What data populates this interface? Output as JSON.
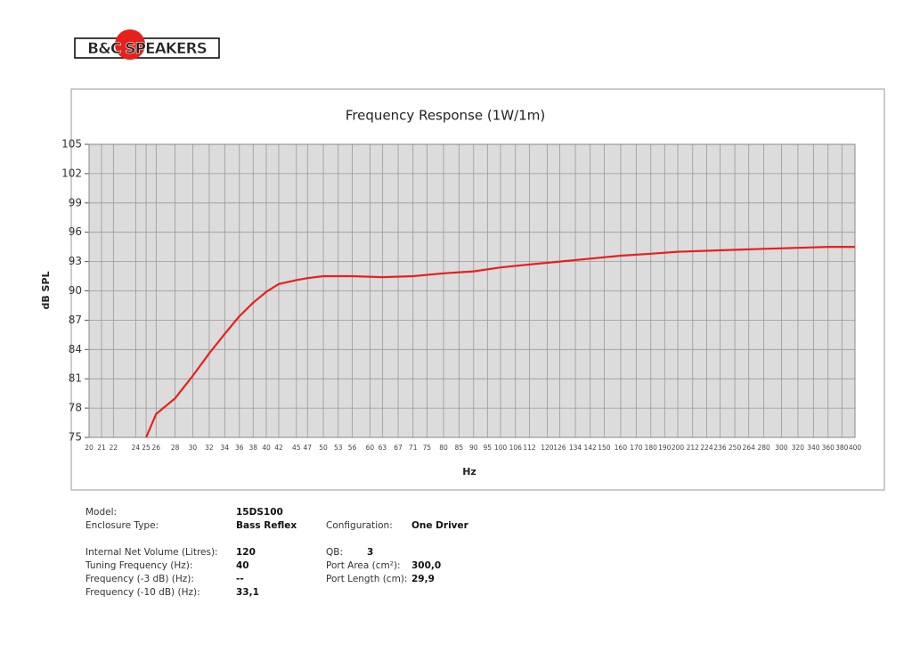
{
  "logo": "B&C SPEAKERS",
  "chart_data": {
    "type": "line",
    "title": "Frequency Response (1W/1m)",
    "x_label": "Hz",
    "y_label": "dB SPL",
    "x": [
      25,
      26,
      28,
      30,
      32,
      34,
      36,
      38,
      40,
      42,
      45,
      47,
      50,
      56,
      63,
      71,
      80,
      90,
      100,
      112,
      126,
      142,
      160,
      180,
      200,
      224,
      250,
      280,
      320,
      360,
      400
    ],
    "series": [
      {
        "name": "SPL",
        "color": "#e8201c",
        "values": [
          75,
          77.4,
          79.0,
          81.3,
          83.6,
          85.6,
          87.4,
          88.8,
          89.9,
          90.7,
          91.1,
          91.3,
          91.5,
          91.5,
          91.4,
          91.5,
          91.8,
          92.0,
          92.4,
          92.7,
          93.0,
          93.3,
          93.6,
          93.8,
          94.0,
          94.1,
          94.2,
          94.3,
          94.4,
          94.5,
          94.5
        ]
      }
    ],
    "x_log": true,
    "xlim": [
      20,
      400
    ],
    "xticks": [
      20,
      21,
      22,
      24,
      25,
      26,
      28,
      30,
      32,
      34,
      36,
      38,
      40,
      42,
      45,
      47,
      50,
      53,
      56,
      60,
      63,
      67,
      71,
      75,
      80,
      85,
      90,
      95,
      100,
      106,
      112,
      120,
      126,
      134,
      142,
      150,
      160,
      170,
      180,
      190,
      200,
      212,
      224,
      236,
      250,
      264,
      280,
      300,
      320,
      340,
      360,
      380,
      400
    ],
    "ylim": [
      75,
      105
    ],
    "yticks": [
      75,
      78,
      81,
      84,
      87,
      90,
      93,
      96,
      99,
      102,
      105
    ],
    "grid": true
  },
  "specs": {
    "left": [
      [
        "Model:",
        "15DS100"
      ],
      [
        "Enclosure Type:",
        "Bass Reflex"
      ],
      [
        "Internal Net Volume (Litres):",
        "120"
      ],
      [
        "Tuning Frequency (Hz):",
        "40"
      ],
      [
        "Frequency (-3 dB) (Hz):",
        "--"
      ],
      [
        "Frequency (-10 dB) (Hz):",
        "33,1"
      ]
    ],
    "right": [
      [
        "Configuration:",
        "One Driver"
      ],
      [
        "QB:",
        "3"
      ],
      [
        "Port Area (cm²):",
        "300,0"
      ],
      [
        "Port Length (cm):",
        "29,9"
      ]
    ]
  }
}
